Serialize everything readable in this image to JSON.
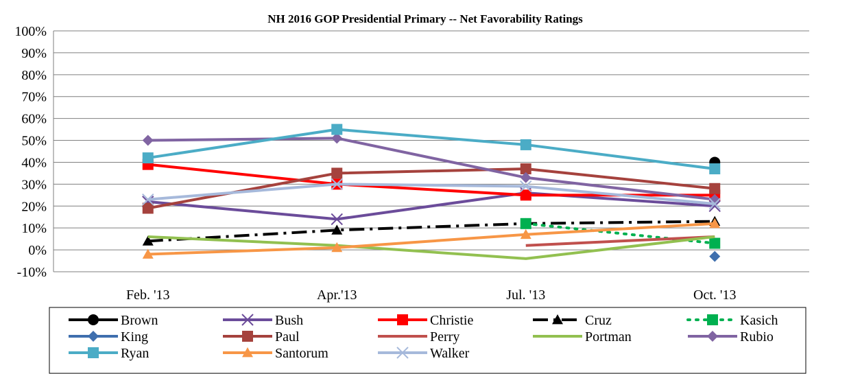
{
  "chart_data": {
    "type": "line",
    "title": "NH 2016 GOP Presidential Primary -- Net Favorability Ratings",
    "xlabel": "",
    "ylabel": "",
    "categories": [
      "Feb. '13",
      "Apr.'13",
      "Jul. '13",
      "Oct. '13"
    ],
    "ylim": [
      -10,
      100
    ],
    "y_ticks": [
      "-10%",
      "0%",
      "10%",
      "20%",
      "30%",
      "40%",
      "50%",
      "60%",
      "70%",
      "80%",
      "90%",
      "100%"
    ],
    "grid": true,
    "legend_position": "bottom",
    "series": [
      {
        "name": "Brown",
        "color": "#000000",
        "marker": "circle",
        "dash": "solid",
        "values": [
          null,
          null,
          null,
          40
        ]
      },
      {
        "name": "Bush",
        "color": "#6B4C9A",
        "marker": "x",
        "dash": "solid",
        "values": [
          22,
          14,
          26,
          20
        ]
      },
      {
        "name": "Christie",
        "color": "#FF0000",
        "marker": "square",
        "dash": "solid",
        "values": [
          39,
          30,
          25,
          25
        ]
      },
      {
        "name": "Cruz",
        "color": "#000000",
        "marker": "triangle",
        "dash": "dashdot",
        "values": [
          4,
          9,
          12,
          13
        ]
      },
      {
        "name": "Kasich",
        "color": "#00B050",
        "marker": "square",
        "dash": "dotted",
        "values": [
          null,
          null,
          12,
          3
        ]
      },
      {
        "name": "King",
        "color": "#3F6FAE",
        "marker": "diamond",
        "dash": "solid",
        "values": [
          null,
          null,
          null,
          -3
        ]
      },
      {
        "name": "Paul",
        "color": "#A5423D",
        "marker": "square",
        "dash": "solid",
        "values": [
          19,
          35,
          37,
          28
        ]
      },
      {
        "name": "Perry",
        "color": "#C0504D",
        "marker": "none",
        "dash": "solid",
        "values": [
          null,
          null,
          2,
          6
        ]
      },
      {
        "name": "Portman",
        "color": "#92C050",
        "marker": "none",
        "dash": "solid",
        "values": [
          6,
          2,
          -4,
          6
        ]
      },
      {
        "name": "Rubio",
        "color": "#8064A2",
        "marker": "diamond",
        "dash": "solid",
        "values": [
          50,
          51,
          33,
          23
        ]
      },
      {
        "name": "Ryan",
        "color": "#4BACC6",
        "marker": "square",
        "dash": "solid",
        "values": [
          42,
          55,
          48,
          37
        ]
      },
      {
        "name": "Santorum",
        "color": "#F79646",
        "marker": "triangle",
        "dash": "solid",
        "values": [
          -2,
          1,
          7,
          12
        ]
      },
      {
        "name": "Walker",
        "color": "#A6B9DB",
        "marker": "x",
        "dash": "solid",
        "values": [
          23,
          30,
          29,
          21
        ]
      }
    ]
  }
}
